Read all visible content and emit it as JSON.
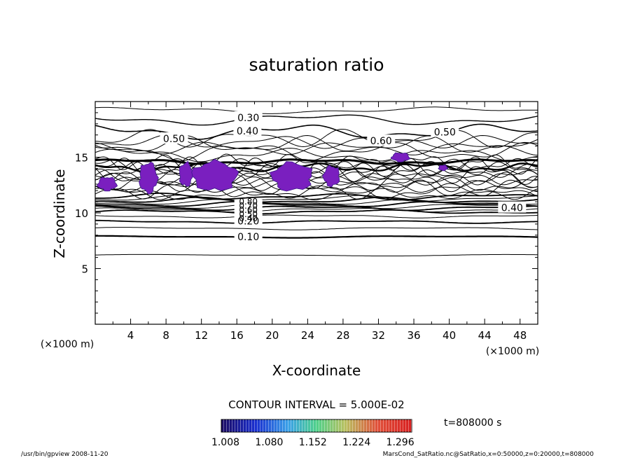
{
  "chart_data": {
    "type": "contour",
    "title": "saturation ratio",
    "xlabel": "X-coordinate",
    "ylabel": "Z-coordinate",
    "x_unit": "(×1000 m)",
    "z_unit": "(×1000 m)",
    "xlim": [
      0,
      50
    ],
    "ylim": [
      0,
      20
    ],
    "x_ticks": [
      4,
      8,
      12,
      16,
      20,
      24,
      28,
      32,
      36,
      40,
      44,
      48
    ],
    "y_ticks": [
      5,
      10,
      15
    ],
    "contour_interval_text": "CONTOUR INTERVAL = 5.000E-02",
    "time_text": "t=808000 s",
    "colorbar": {
      "ticks": [
        "1.008",
        "1.080",
        "1.152",
        "1.224",
        "1.296"
      ],
      "range": [
        1.008,
        1.296
      ]
    },
    "contour_labels": [
      {
        "text": "0.30",
        "x": 17.3,
        "z": 18.5
      },
      {
        "text": "0.40",
        "x": 17.2,
        "z": 17.3
      },
      {
        "text": "0.50",
        "x": 8.9,
        "z": 16.6
      },
      {
        "text": "0.60",
        "x": 32.3,
        "z": 16.4
      },
      {
        "text": "0.50",
        "x": 39.5,
        "z": 17.2
      },
      {
        "text": "0.40",
        "x": 47.1,
        "z": 10.4
      },
      {
        "text": "0.20",
        "x": 17.3,
        "z": 9.2
      },
      {
        "text": "0.10",
        "x": 17.3,
        "z": 7.8
      }
    ],
    "cluster_labels": [
      "0.80",
      "0.70",
      "0.60",
      "0.50",
      "0.40"
    ],
    "supersaturated_regions": [
      {
        "x": [
          0.3,
          2.4
        ],
        "z": [
          12.0,
          13.2
        ]
      },
      {
        "x": [
          5.0,
          7.0
        ],
        "z": [
          11.8,
          14.5
        ]
      },
      {
        "x": [
          9.5,
          11.0
        ],
        "z": [
          12.4,
          14.5
        ]
      },
      {
        "x": [
          11.0,
          16.0
        ],
        "z": [
          12.0,
          14.6
        ]
      },
      {
        "x": [
          20.0,
          24.5
        ],
        "z": [
          12.0,
          14.5
        ]
      },
      {
        "x": [
          25.8,
          27.6
        ],
        "z": [
          12.4,
          14.2
        ]
      },
      {
        "x": [
          33.5,
          35.5
        ],
        "z": [
          14.6,
          15.4
        ]
      },
      {
        "x": [
          38.8,
          39.8
        ],
        "z": [
          13.8,
          14.3
        ]
      }
    ]
  },
  "footer": {
    "left": "/usr/bin/gpview   2008-11-20",
    "right": "MarsCond_SatRatio.nc@SatRatio,x=0:50000,z=0:20000,t=808000"
  },
  "colors": {
    "background": "#ffffff",
    "ink": "#000000",
    "fill": "#7a1fbf",
    "fill_edge": "#3a1a8a"
  }
}
